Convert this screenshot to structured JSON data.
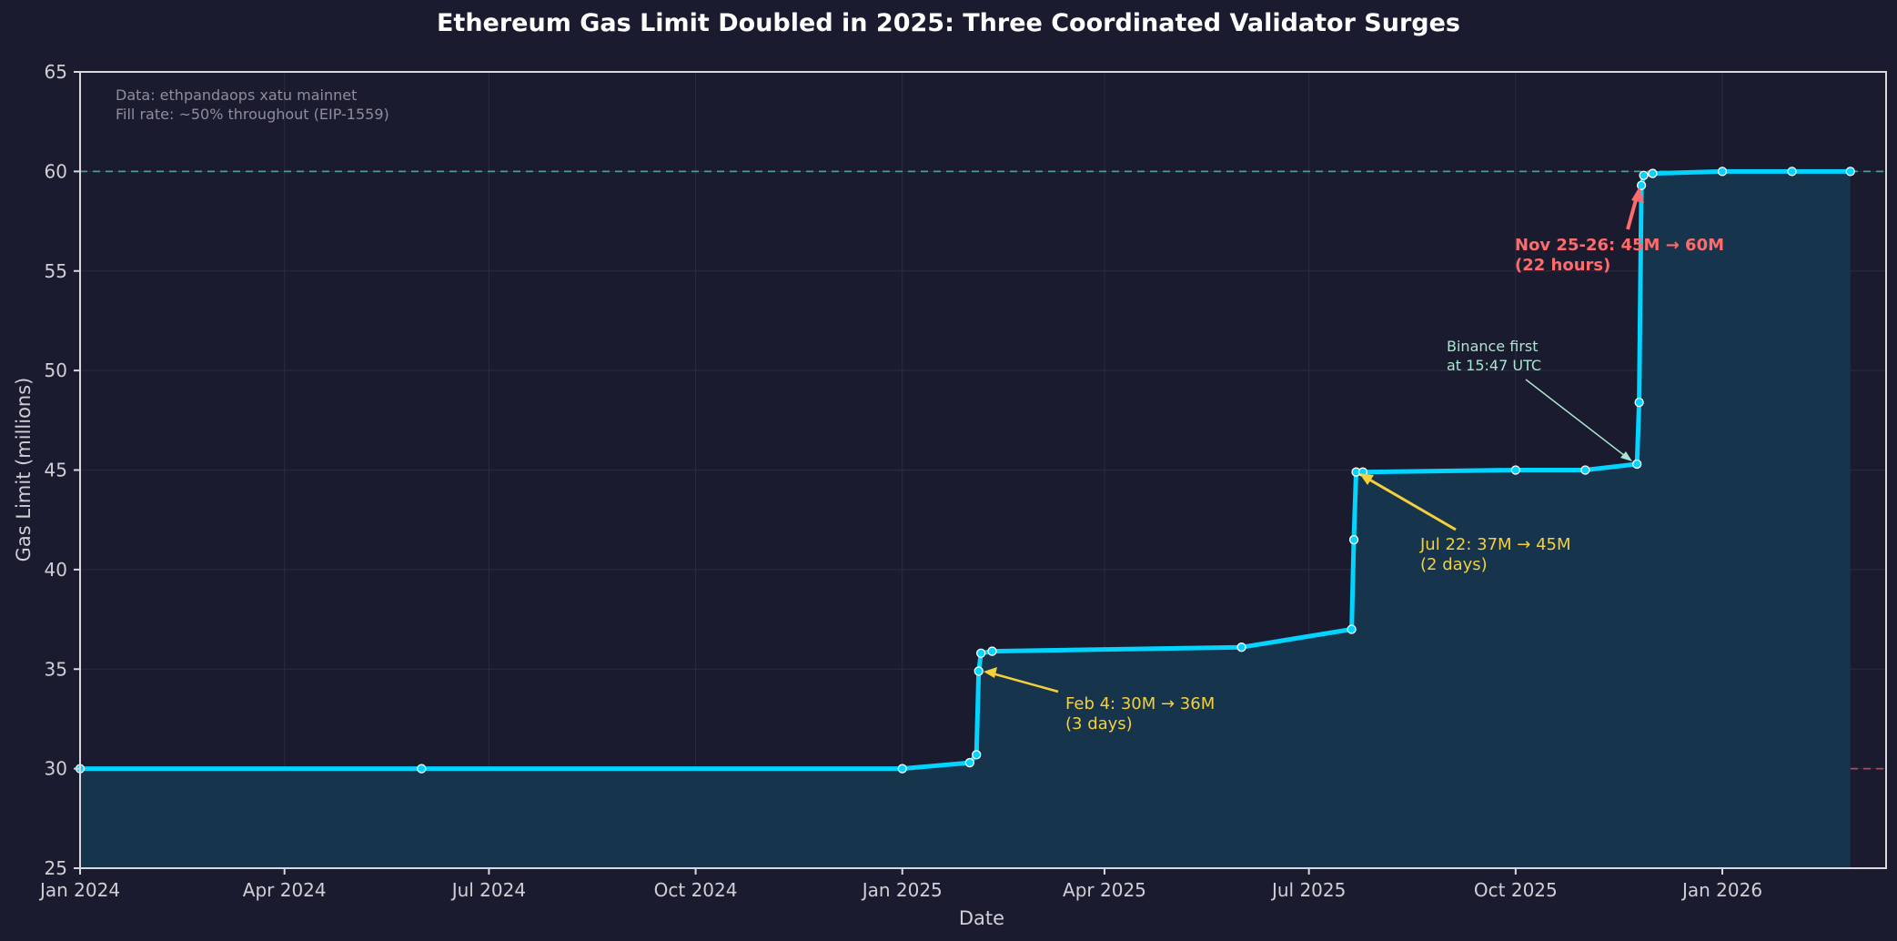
{
  "chart_data": {
    "type": "line",
    "title": "Ethereum Gas Limit Doubled in 2025: Three Coordinated Validator Surges",
    "xlabel": "Date",
    "ylabel": "Gas Limit (millions)",
    "ylim": [
      25,
      65
    ],
    "xlim": [
      "2024-01-01",
      "2026-03-15"
    ],
    "grid": true,
    "legend": null,
    "x_ticks": [
      "Jan 2024",
      "Apr 2024",
      "Jul 2024",
      "Oct 2024",
      "Jan 2025",
      "Apr 2025",
      "Jul 2025",
      "Oct 2025",
      "Jan 2026"
    ],
    "y_ticks": [
      25,
      30,
      35,
      40,
      45,
      50,
      55,
      60,
      65
    ],
    "series": [
      {
        "name": "Gas Limit",
        "color": "#00d4ff",
        "fill_color": "#17344d",
        "points": [
          {
            "date": "2024-01-01",
            "value": 30.0
          },
          {
            "date": "2024-06-01",
            "value": 30.0
          },
          {
            "date": "2025-01-01",
            "value": 30.0
          },
          {
            "date": "2025-01-31",
            "value": 30.3
          },
          {
            "date": "2025-02-03",
            "value": 30.7
          },
          {
            "date": "2025-02-04",
            "value": 34.9
          },
          {
            "date": "2025-02-05",
            "value": 35.8
          },
          {
            "date": "2025-02-10",
            "value": 35.9
          },
          {
            "date": "2025-06-01",
            "value": 36.1
          },
          {
            "date": "2025-07-20",
            "value": 37.0
          },
          {
            "date": "2025-07-21",
            "value": 41.5
          },
          {
            "date": "2025-07-22",
            "value": 44.9
          },
          {
            "date": "2025-07-25",
            "value": 44.9
          },
          {
            "date": "2025-10-01",
            "value": 45.0
          },
          {
            "date": "2025-11-01",
            "value": 45.0
          },
          {
            "date": "2025-11-24",
            "value": 45.3
          },
          {
            "date": "2025-11-25",
            "value": 48.4
          },
          {
            "date": "2025-11-26",
            "value": 59.3
          },
          {
            "date": "2025-11-27",
            "value": 59.8
          },
          {
            "date": "2025-12-01",
            "value": 59.9
          },
          {
            "date": "2026-01-01",
            "value": 60.0
          },
          {
            "date": "2026-02-01",
            "value": 60.0
          },
          {
            "date": "2026-02-27",
            "value": 60.0
          }
        ]
      }
    ],
    "reference_lines": [
      {
        "y": 60,
        "color": "#4a9a9e",
        "style": "dashed"
      },
      {
        "y": 30,
        "color": "#a05060",
        "style": "dashed"
      }
    ],
    "annotations": [
      {
        "text": [
          "Feb 4: 30M → 36M",
          "(3 days)"
        ],
        "color": "#f5d03b",
        "points_to": {
          "date": "2025-02-04",
          "value": 34.9
        }
      },
      {
        "text": [
          "Jul 22: 37M → 45M",
          "(2 days)"
        ],
        "color": "#f5d03b",
        "points_to": {
          "date": "2025-07-22",
          "value": 44.9
        }
      },
      {
        "text": [
          "Binance first",
          "at 15:47 UTC"
        ],
        "color": "#a8e6cf",
        "points_to": {
          "date": "2025-11-24",
          "value": 45.3
        }
      },
      {
        "text": [
          "Nov 25-26: 45M → 60M",
          "(22 hours)"
        ],
        "color": "#ff6b6b",
        "bold": true,
        "points_to": {
          "date": "2025-11-26",
          "value": 59.3
        }
      }
    ],
    "notes": [
      "Data: ethpandaops xatu mainnet",
      "Fill rate: ~50% throughout (EIP-1559)"
    ]
  },
  "labels": {
    "title": "Ethereum Gas Limit Doubled in 2025: Three Coordinated Validator Surges",
    "xlabel": "Date",
    "ylabel": "Gas Limit (millions)",
    "note1": "Data: ethpandaops xatu mainnet",
    "note2": "Fill rate: ~50% throughout (EIP-1559)",
    "ann_feb_1": "Feb 4: 30M → 36M",
    "ann_feb_2": "(3 days)",
    "ann_jul_1": "Jul 22: 37M → 45M",
    "ann_jul_2": "(2 days)",
    "ann_binance_1": "Binance first",
    "ann_binance_2": "at 15:47 UTC",
    "ann_nov_1": "Nov 25-26: 45M → 60M",
    "ann_nov_2": "(22 hours)"
  },
  "colors": {
    "background": "#1a1b2e",
    "line": "#00d4ff",
    "fill": "#17344d",
    "ref60": "#4a9a9e",
    "ref30": "#a05060",
    "yellow": "#f5d03b",
    "red": "#ff6b6b",
    "mint": "#a8e6cf"
  }
}
